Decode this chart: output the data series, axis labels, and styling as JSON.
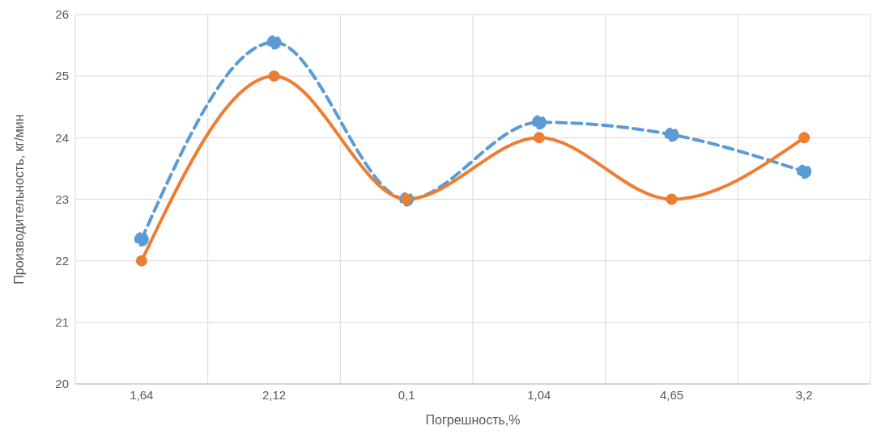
{
  "chart_data": {
    "type": "line",
    "xlabel": "Погрешность,%",
    "ylabel": "Производительность, кг/мин",
    "categories": [
      "1,64",
      "2,12",
      "0,1",
      "1,04",
      "4,65",
      "3,2"
    ],
    "series": [
      {
        "color": "#5b9bd5",
        "line_style": "dashed",
        "values": [
          22.35,
          25.55,
          23.0,
          24.25,
          24.05,
          23.45
        ]
      },
      {
        "color": "#ed7d31",
        "line_style": "solid",
        "values": [
          22,
          25,
          23,
          24,
          23,
          24
        ]
      }
    ],
    "ylim": [
      20,
      26
    ],
    "yticks": [
      20,
      21,
      22,
      23,
      24,
      25,
      26
    ],
    "grid": true,
    "marker": "circle",
    "legend": false
  }
}
